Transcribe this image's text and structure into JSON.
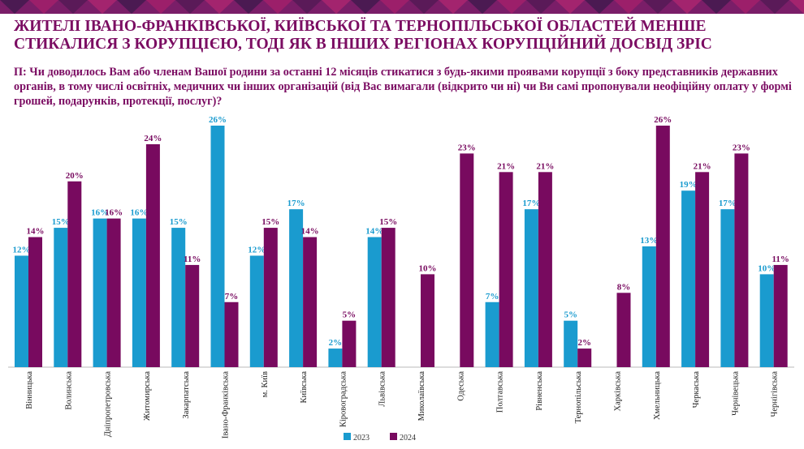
{
  "title": "ЖИТЕЛІ ІВАНО-ФРАНКІВСЬКОЇ, КИЇВСЬКОЇ ТА ТЕРНОПІЛЬСЬКОЇ ОБЛАСТЕЙ МЕНШЕ СТИКАЛИСЯ З КОРУПЦІЄЮ, ТОДІ ЯК В ІНШИХ РЕГІОНАХ КОРУПЦІЙНИЙ ДОСВІД ЗРІС",
  "question": "П: Чи доводилось Вам або членам Вашої родини за останні 12 місяців стикатися з будь-якими проявами корупції з боку представників державних органів, в тому числі освітніх, медичних чи інших організацій (від Вас вимагали (відкрито чи ні) чи Ви самі пропонували неофіційну оплату у формі грошей, подарунків, протекції, послуг)?",
  "colors": {
    "accent": "#7b0c62",
    "series_2023": "#1a9bcf",
    "series_2024": "#780a5f"
  },
  "chart_data": {
    "type": "bar",
    "categories": [
      "Вінницька",
      "Волинська",
      "Дніпропетровська",
      "Житомирська",
      "Закарпатська",
      "Івано-Франківська",
      "м. Київ",
      "Київська",
      "Кіровоградська",
      "Львівська",
      "Миколаївська",
      "Одеська",
      "Полтавська",
      "Рівненська",
      "Тернопільська",
      "Харківська",
      "Хмельницька",
      "Черкаська",
      "Чернівецька",
      "Чернігівська"
    ],
    "series": [
      {
        "name": "2023",
        "values": [
          12,
          15,
          16,
          16,
          15,
          26,
          12,
          17,
          2,
          14,
          null,
          null,
          7,
          17,
          5,
          null,
          13,
          19,
          17,
          10
        ]
      },
      {
        "name": "2024",
        "values": [
          14,
          20,
          16,
          24,
          11,
          7,
          15,
          14,
          5,
          15,
          10,
          23,
          21,
          21,
          2,
          8,
          26,
          21,
          23,
          11
        ]
      }
    ],
    "value_suffix": "%",
    "ylim": [
      0,
      26
    ],
    "grid": false,
    "legend": "bottom"
  }
}
